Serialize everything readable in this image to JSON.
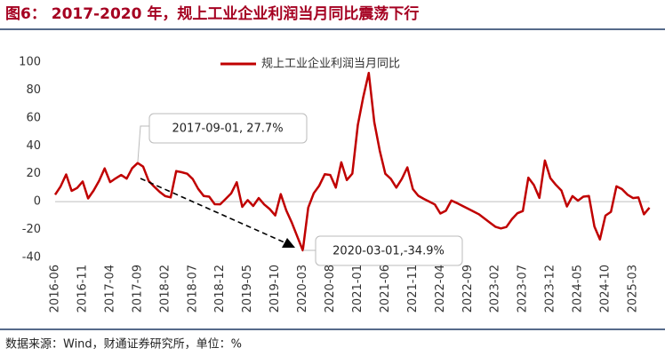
{
  "chart_data": {
    "type": "line",
    "title": "图6： 2017-2020 年，规上工业企业利润当月同比震荡下行",
    "source": "数据来源：Wind，财通证券研究所，单位：%",
    "annotations": [
      "2017-09-01, 27.7%",
      "2020-03-01,-34.9%"
    ],
    "categories": [
      "2016-06",
      null,
      null,
      null,
      null,
      "2016-11",
      null,
      null,
      null,
      null,
      "2017-04",
      null,
      null,
      null,
      null,
      "2017-09",
      null,
      null,
      null,
      null,
      "2018-02",
      null,
      null,
      null,
      null,
      "2018-07",
      null,
      null,
      null,
      null,
      "2018-12",
      null,
      null,
      null,
      null,
      "2019-05",
      null,
      null,
      null,
      null,
      "2019-10",
      null,
      null,
      null,
      null,
      "2020-03",
      null,
      null,
      null,
      null,
      "2020-08",
      null,
      null,
      null,
      null,
      "2021-01",
      null,
      null,
      null,
      null,
      "2021-06",
      null,
      null,
      null,
      null,
      "2021-11",
      null,
      null,
      null,
      null,
      "2022-04",
      null,
      null,
      null,
      null,
      "2022-09",
      null,
      null,
      null,
      null,
      "2023-02",
      null,
      null,
      null,
      null,
      "2023-07",
      null,
      null,
      null,
      null,
      "2023-12",
      null,
      null,
      null,
      null,
      "2024-05",
      null,
      null,
      null,
      null,
      "2024-10",
      null,
      null,
      null,
      null,
      "2025-03",
      null,
      null,
      null
    ],
    "series": [
      {
        "name": "规上工业企业利润当月同比",
        "color": "#c00000",
        "values": [
          5,
          11,
          19.5,
          7.7,
          9.8,
          14.5,
          2.3,
          8,
          15,
          23.8,
          14,
          16.7,
          19.1,
          16.5,
          24,
          27.7,
          25.1,
          14.9,
          10.8,
          7,
          4,
          3.1,
          21.9,
          21.1,
          20,
          16.2,
          9.2,
          4.1,
          3.6,
          -1.8,
          -1.9,
          2,
          6,
          13.9,
          -3.7,
          1.1,
          -3.1,
          2.6,
          -2,
          -5.3,
          -9.9,
          5.4,
          -6.3,
          -15,
          -25,
          -34.9,
          -4.3,
          6,
          11.5,
          19.6,
          19.1,
          10.1,
          28.2,
          15.5,
          20.1,
          55,
          75,
          92.3,
          57,
          36.4,
          20,
          16.4,
          10.1,
          16.3,
          24.6,
          9,
          4.2,
          2,
          0,
          -2,
          -8.5,
          -6.5,
          0.8,
          -1,
          -3,
          -5,
          -7,
          -9,
          -12,
          -15,
          -18,
          -19.2,
          -18.2,
          -12.6,
          -8.3,
          -6.7,
          17.2,
          11.9,
          2.7,
          29.5,
          16.8,
          12,
          8,
          -3.5,
          4,
          0.7,
          3.6,
          4.1,
          -17.8,
          -27.1,
          -10,
          -7.3,
          11,
          9,
          5,
          2.6,
          3,
          -9.1,
          -4.3
        ]
      }
    ],
    "ylim": [
      -40,
      100
    ],
    "yticks": [
      -40,
      -20,
      0,
      20,
      40,
      60,
      80,
      100
    ]
  }
}
